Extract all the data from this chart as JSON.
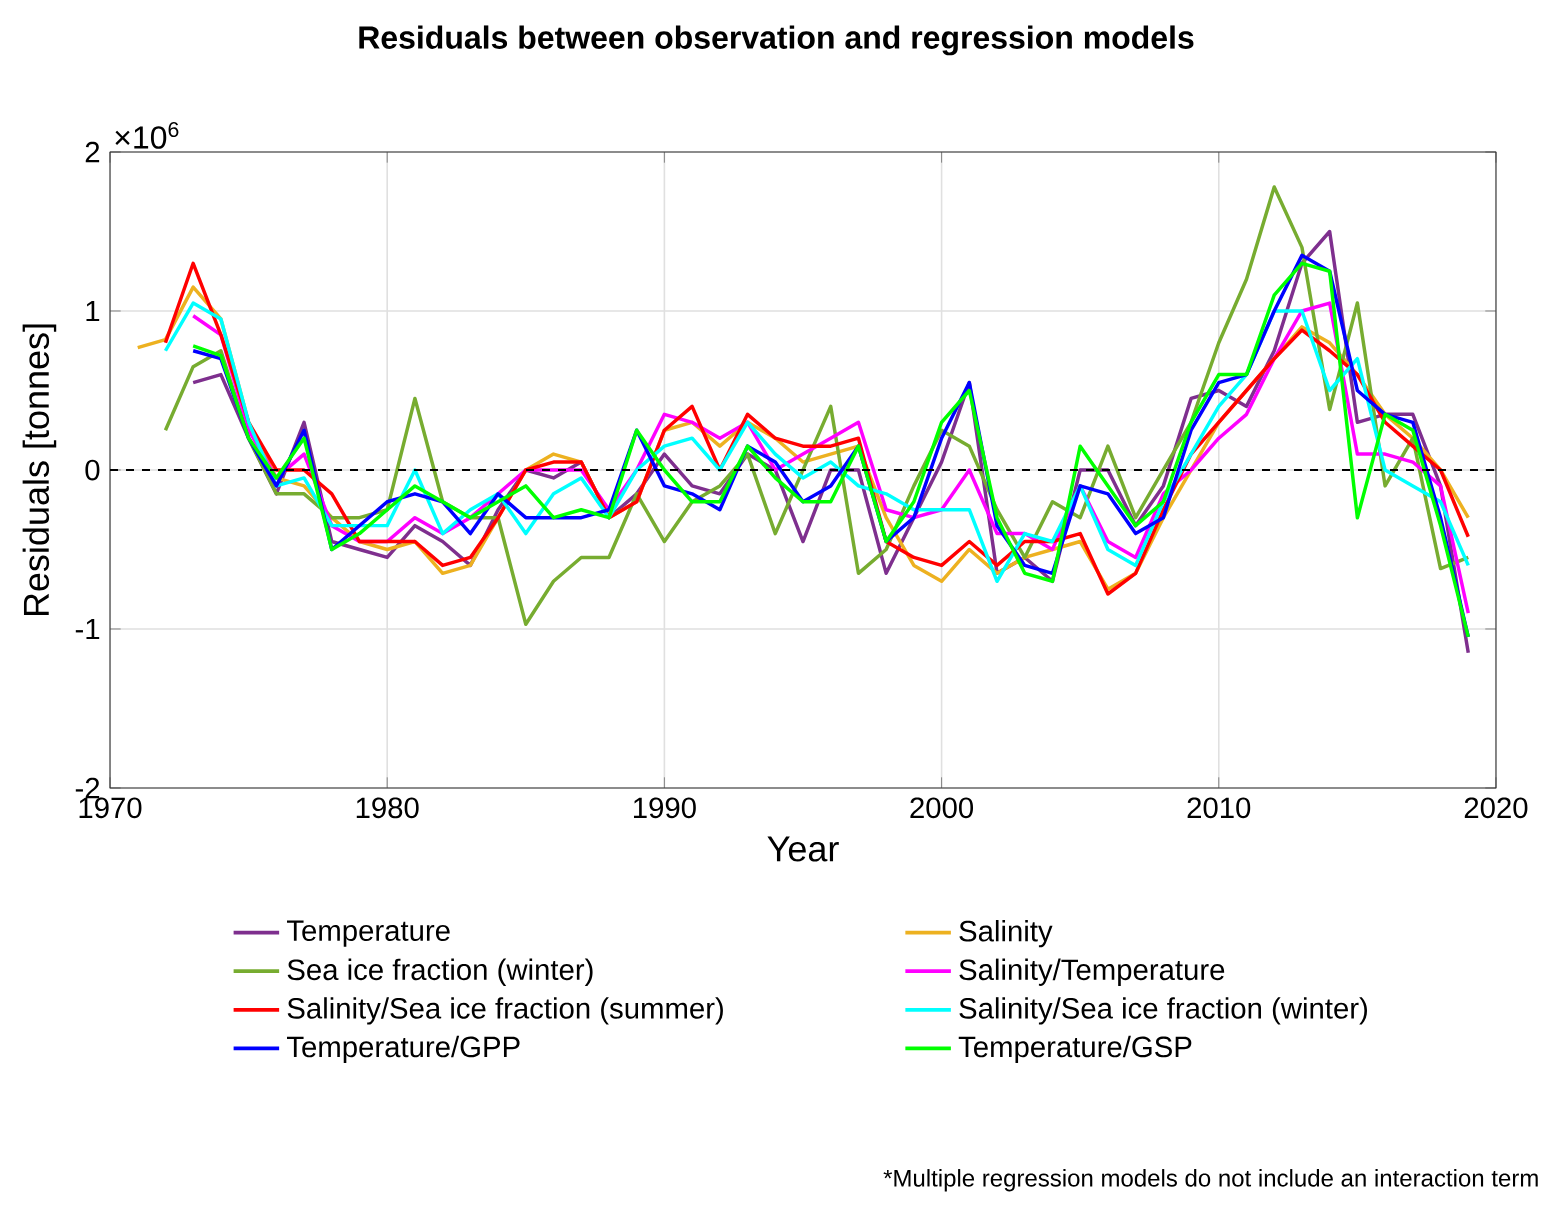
{
  "chart_data": {
    "type": "line",
    "title": "Residuals between observation and regression models",
    "xlabel": "Year",
    "ylabel": "Residuals [tonnes]",
    "x": [
      1971,
      1972,
      1973,
      1974,
      1975,
      1976,
      1977,
      1978,
      1979,
      1980,
      1981,
      1982,
      1983,
      1984,
      1985,
      1986,
      1987,
      1988,
      1989,
      1990,
      1991,
      1992,
      1993,
      1994,
      1995,
      1996,
      1997,
      1998,
      1999,
      2000,
      2001,
      2002,
      2003,
      2004,
      2005,
      2006,
      2007,
      2008,
      2009,
      2010,
      2011,
      2012,
      2013,
      2014,
      2015,
      2016,
      2017,
      2018,
      2019
    ],
    "series": [
      {
        "name": "Temperature",
        "color": "#7e2f8e",
        "values": [
          null,
          null,
          0.55,
          0.6,
          0.2,
          -0.15,
          0.3,
          -0.45,
          -0.5,
          -0.55,
          -0.35,
          -0.45,
          -0.6,
          -0.25,
          0.0,
          -0.05,
          0.05,
          -0.3,
          -0.15,
          0.1,
          -0.1,
          -0.15,
          0.1,
          0.0,
          -0.45,
          0.0,
          0.0,
          -0.65,
          -0.3,
          0.05,
          0.55,
          -0.65,
          -0.55,
          -0.7,
          0.0,
          0.0,
          -0.35,
          -0.1,
          0.45,
          0.5,
          0.4,
          0.75,
          1.3,
          1.5,
          0.3,
          0.35,
          0.35,
          -0.1,
          -1.15
        ]
      },
      {
        "name": "Salinity",
        "color": "#edb120",
        "values": [
          0.77,
          0.82,
          1.15,
          0.95,
          0.3,
          -0.05,
          -0.1,
          -0.3,
          -0.45,
          -0.5,
          -0.45,
          -0.65,
          -0.6,
          -0.3,
          0.0,
          0.1,
          0.05,
          -0.3,
          -0.2,
          0.25,
          0.3,
          0.15,
          0.3,
          0.2,
          0.05,
          0.1,
          0.15,
          -0.3,
          -0.6,
          -0.7,
          -0.5,
          -0.65,
          -0.55,
          -0.5,
          -0.45,
          -0.75,
          -0.65,
          -0.3,
          0.0,
          0.3,
          0.5,
          0.7,
          0.9,
          0.8,
          0.6,
          0.35,
          0.2,
          0.0,
          -0.3
        ]
      },
      {
        "name": "Sea ice fraction (winter)",
        "color": "#77ac30",
        "values": [
          null,
          0.25,
          0.65,
          0.75,
          0.2,
          -0.15,
          -0.15,
          -0.3,
          -0.3,
          -0.25,
          0.45,
          -0.2,
          -0.3,
          -0.3,
          -0.97,
          -0.7,
          -0.55,
          -0.55,
          -0.15,
          -0.45,
          -0.2,
          -0.1,
          0.1,
          -0.4,
          0.0,
          0.4,
          -0.65,
          -0.5,
          -0.1,
          0.25,
          0.15,
          -0.25,
          -0.55,
          -0.2,
          -0.3,
          0.15,
          -0.3,
          0.0,
          0.3,
          0.8,
          1.2,
          1.78,
          1.4,
          0.38,
          1.05,
          -0.1,
          0.2,
          -0.62,
          -0.55
        ]
      },
      {
        "name": "Salinity/Temperature",
        "color": "#ff00ff",
        "values": [
          null,
          null,
          0.97,
          0.85,
          0.25,
          -0.05,
          0.1,
          -0.35,
          -0.45,
          -0.45,
          -0.3,
          -0.4,
          -0.3,
          -0.15,
          0.0,
          0.0,
          0.0,
          -0.25,
          0.0,
          0.35,
          0.3,
          0.2,
          0.3,
          0.0,
          0.1,
          0.2,
          0.3,
          -0.25,
          -0.3,
          -0.25,
          0.0,
          -0.4,
          -0.4,
          -0.5,
          -0.1,
          -0.45,
          -0.55,
          -0.15,
          0.0,
          0.2,
          0.35,
          0.7,
          1.0,
          1.05,
          0.1,
          0.1,
          0.05,
          -0.1,
          -0.9
        ]
      },
      {
        "name": "Salinity/Sea ice fraction (summer)",
        "color": "#ff0000",
        "values": [
          null,
          0.8,
          1.3,
          0.85,
          0.3,
          0.0,
          0.0,
          -0.15,
          -0.45,
          -0.45,
          -0.45,
          -0.6,
          -0.55,
          -0.3,
          0.0,
          0.05,
          0.05,
          -0.3,
          -0.2,
          0.25,
          0.4,
          0.0,
          0.35,
          0.2,
          0.15,
          0.15,
          0.2,
          -0.45,
          -0.55,
          -0.6,
          -0.45,
          -0.6,
          -0.45,
          -0.45,
          -0.4,
          -0.78,
          -0.65,
          -0.25,
          0.1,
          0.3,
          0.5,
          0.7,
          0.88,
          0.75,
          0.6,
          0.3,
          0.15,
          0.0,
          -0.42
        ]
      },
      {
        "name": "Salinity/Sea ice fraction (winter)",
        "color": "#00ffff",
        "values": [
          null,
          0.75,
          1.05,
          0.95,
          0.3,
          -0.1,
          -0.05,
          -0.35,
          -0.35,
          -0.35,
          0.0,
          -0.4,
          -0.25,
          -0.15,
          -0.4,
          -0.15,
          -0.05,
          -0.3,
          0.0,
          0.15,
          0.2,
          0.0,
          0.3,
          0.1,
          -0.05,
          0.05,
          -0.1,
          -0.15,
          -0.25,
          -0.25,
          -0.25,
          -0.7,
          -0.4,
          -0.45,
          -0.1,
          -0.5,
          -0.6,
          -0.2,
          0.1,
          0.4,
          0.6,
          1.0,
          1.0,
          0.5,
          0.7,
          0.0,
          -0.1,
          -0.2,
          -0.6
        ]
      },
      {
        "name": "Temperature/GPP",
        "color": "#0000ff",
        "values": [
          null,
          null,
          0.75,
          0.7,
          0.2,
          -0.1,
          0.25,
          -0.5,
          -0.35,
          -0.2,
          -0.15,
          -0.2,
          -0.4,
          -0.15,
          -0.3,
          -0.3,
          -0.3,
          -0.25,
          0.25,
          -0.1,
          -0.15,
          -0.25,
          0.15,
          0.05,
          -0.2,
          -0.1,
          0.15,
          -0.45,
          -0.3,
          0.2,
          0.55,
          -0.35,
          -0.6,
          -0.65,
          -0.1,
          -0.15,
          -0.4,
          -0.3,
          0.25,
          0.55,
          0.6,
          1.0,
          1.35,
          1.25,
          0.5,
          0.35,
          0.3,
          -0.3,
          -1.05
        ]
      },
      {
        "name": "Temperature/GSP",
        "color": "#00ff00",
        "values": [
          null,
          null,
          0.78,
          0.72,
          0.2,
          -0.05,
          0.2,
          -0.5,
          -0.4,
          -0.25,
          -0.1,
          -0.2,
          -0.3,
          -0.2,
          -0.1,
          -0.3,
          -0.25,
          -0.3,
          0.25,
          0.0,
          -0.2,
          -0.2,
          0.15,
          -0.05,
          -0.2,
          -0.2,
          0.15,
          -0.45,
          -0.2,
          0.3,
          0.5,
          -0.3,
          -0.65,
          -0.7,
          0.15,
          -0.1,
          -0.35,
          -0.2,
          0.3,
          0.6,
          0.6,
          1.1,
          1.3,
          1.25,
          -0.3,
          0.35,
          0.25,
          -0.35,
          -1.05
        ]
      }
    ],
    "xlim": [
      1970,
      2020
    ],
    "xticks": [
      1970,
      1980,
      1990,
      2000,
      2010,
      2020
    ],
    "ylim": [
      -2,
      2
    ],
    "yticks": [
      -2,
      -1,
      0,
      1,
      2
    ],
    "grid": true,
    "legend": "bottom",
    "ref_lines": [
      {
        "axis": "y",
        "value": 0,
        "color": "#000000",
        "line_style": "dashed"
      }
    ],
    "annotations": [
      "×10$^{6}$",
      "*Multiple regression models do not include an interaction term"
    ]
  }
}
